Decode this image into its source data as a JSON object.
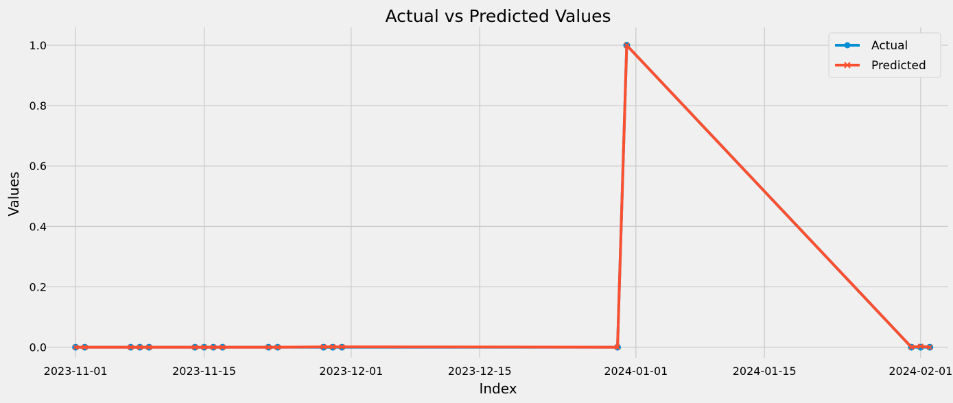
{
  "chart_data": {
    "type": "line",
    "title": "Actual vs Predicted Values",
    "xlabel": "Index",
    "ylabel": "Values",
    "ylim": [
      -0.035,
      1.05
    ],
    "xlim": [
      "2023-10-29",
      "2024-02-04"
    ],
    "x_ticks": [
      "2023-11-01",
      "2023-11-15",
      "2023-12-01",
      "2023-12-15",
      "2024-01-01",
      "2024-01-15",
      "2024-02-01"
    ],
    "y_ticks": [
      "0.0",
      "0.2",
      "0.4",
      "0.6",
      "0.8",
      "1.0"
    ],
    "grid": true,
    "legend_position": "top-right",
    "x": [
      "2023-11-01",
      "2023-11-02",
      "2023-11-07",
      "2023-11-08",
      "2023-11-09",
      "2023-11-14",
      "2023-11-15",
      "2023-11-16",
      "2023-11-17",
      "2023-11-22",
      "2023-11-23",
      "2023-11-28",
      "2023-11-29",
      "2023-11-30",
      "2023-12-30",
      "2023-12-31",
      "2024-01-31",
      "2024-02-01",
      "2024-02-02"
    ],
    "series": [
      {
        "name": "Actual",
        "color": "#008fd5",
        "marker": "circle",
        "values": [
          0,
          0,
          0,
          0,
          0,
          0,
          0,
          0,
          0,
          0,
          0,
          0,
          0,
          0,
          0,
          1,
          0,
          0,
          0
        ]
      },
      {
        "name": "Predicted",
        "color": "#fc4f30",
        "marker": "x",
        "values": [
          0,
          0,
          0,
          0,
          0,
          0,
          0,
          0,
          0,
          0,
          0,
          0.001,
          0.001,
          0.001,
          0,
          1,
          0,
          0.003,
          0
        ]
      }
    ]
  }
}
